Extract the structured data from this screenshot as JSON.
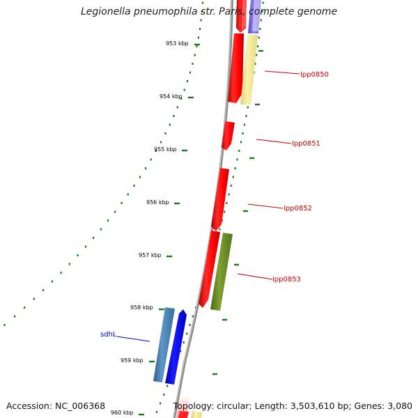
{
  "title": "Legionella pneumophila str. Paris, complete genome",
  "accession": "Accession: NC_006368",
  "summary": "Topology: circular; Length: 3,503,610 bp; Genes: 3,080",
  "colors": {
    "backbone": "#8a8a8a",
    "tick": "#1a7a1a",
    "cds_red": "#ff0000",
    "cds_blue": "#0000ff",
    "steelblue": "#4682b4",
    "olive": "#6b8e23",
    "khaki": "#f0e68c",
    "slateblue": "#7b68ee",
    "label_red": "#cc0000",
    "label_blue": "#0000cc"
  },
  "scale_labels": [
    "953 kbp",
    "954 kbp",
    "955 kbp",
    "956 kbp",
    "957 kbp",
    "958 kbp",
    "959 kbp",
    "960 kbp"
  ],
  "gene_labels": [
    {
      "name": "lpp0850",
      "color": "#cc0000"
    },
    {
      "name": "lpp0851",
      "color": "#cc0000"
    },
    {
      "name": "lpp0852",
      "color": "#cc0000"
    },
    {
      "name": "lpp0853",
      "color": "#cc0000"
    },
    {
      "name": "sdhL",
      "color": "#0000cc"
    }
  ]
}
